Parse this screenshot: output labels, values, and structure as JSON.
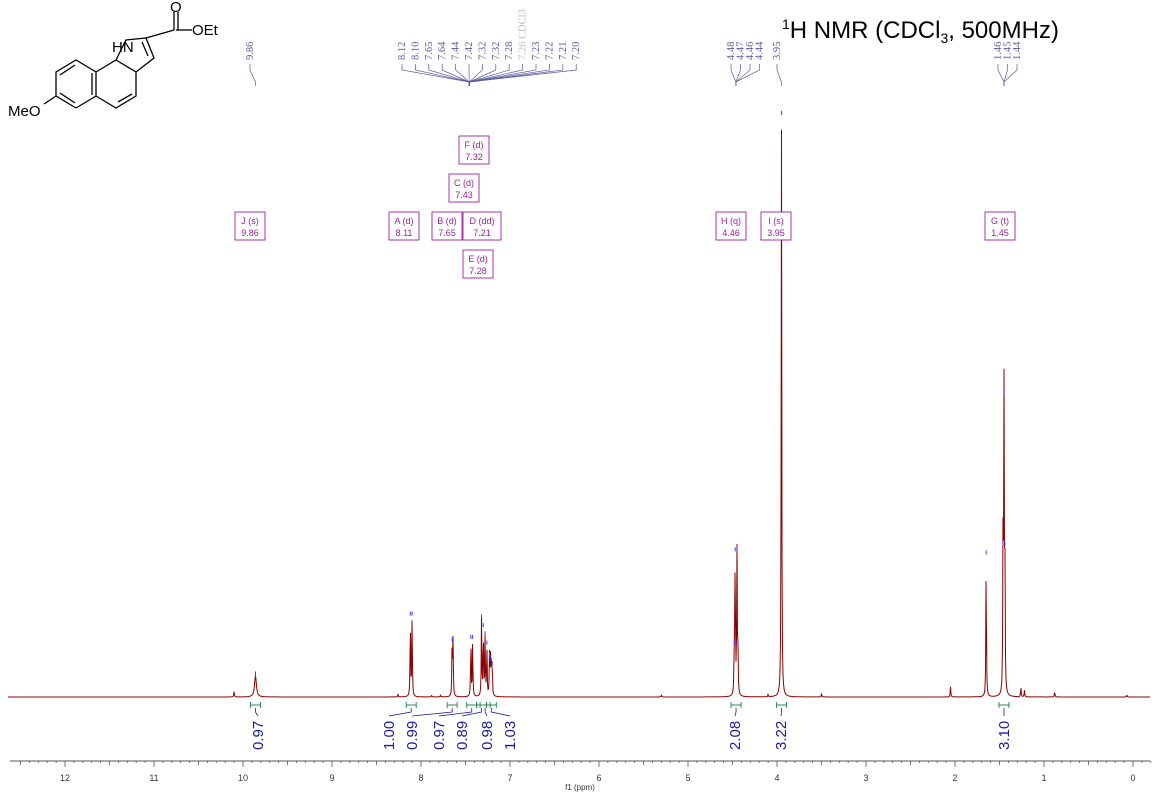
{
  "chart_data": {
    "type": "line",
    "title_main": "H NMR (CDCl",
    "title_sup": "1",
    "title_sub": "3",
    "title_tail": ", 500MHz)",
    "xlabel": "f1 (ppm)",
    "xlim": [
      12.8,
      -0.3
    ],
    "x_ticks": [
      "12",
      "11",
      "10",
      "9",
      "8",
      "7",
      "6",
      "5",
      "4",
      "3",
      "2",
      "1",
      "0"
    ],
    "structure": {
      "substituent_top": "OEt",
      "carbonyl_o": "O",
      "nh": "HN",
      "substituent_left": "MeO"
    },
    "peak_labels": [
      {
        "group": 1,
        "ppm": "9.86"
      },
      {
        "group": 2,
        "ppm": "8.12"
      },
      {
        "group": 2,
        "ppm": "8.10"
      },
      {
        "group": 2,
        "ppm": "7.65"
      },
      {
        "group": 2,
        "ppm": "7.64"
      },
      {
        "group": 2,
        "ppm": "7.44"
      },
      {
        "group": 2,
        "ppm": "7.42"
      },
      {
        "group": 2,
        "ppm": "7.32"
      },
      {
        "group": 2,
        "ppm": "7.32"
      },
      {
        "group": 2,
        "ppm": "7.28"
      },
      {
        "group": 2,
        "ppm": "7.26 CDCl3",
        "solvent": true
      },
      {
        "group": 2,
        "ppm": "7.23"
      },
      {
        "group": 2,
        "ppm": "7.22"
      },
      {
        "group": 2,
        "ppm": "7.21"
      },
      {
        "group": 2,
        "ppm": "7.20"
      },
      {
        "group": 3,
        "ppm": "4.48"
      },
      {
        "group": 3,
        "ppm": "4.47"
      },
      {
        "group": 3,
        "ppm": "4.46"
      },
      {
        "group": 3,
        "ppm": "4.44"
      },
      {
        "group": 4,
        "ppm": "3.95"
      },
      {
        "group": 5,
        "ppm": "1.46"
      },
      {
        "group": 5,
        "ppm": "1.45"
      },
      {
        "group": 5,
        "ppm": "1.44"
      }
    ],
    "multiplets": [
      {
        "label": "J (s)",
        "shift": "9.86",
        "ppm": 9.86
      },
      {
        "label": "A (d)",
        "shift": "8.11",
        "ppm": 8.11
      },
      {
        "label": "B (d)",
        "shift": "7.65",
        "ppm": 7.65
      },
      {
        "label": "D (dd)",
        "shift": "7.21",
        "ppm": 7.21
      },
      {
        "label": "C (d)",
        "shift": "7.43",
        "ppm": 7.43
      },
      {
        "label": "F (d)",
        "shift": "7.32",
        "ppm": 7.32
      },
      {
        "label": "E (d)",
        "shift": "7.28",
        "ppm": 7.28
      },
      {
        "label": "H (q)",
        "shift": "4.46",
        "ppm": 4.46
      },
      {
        "label": "I (s)",
        "shift": "3.95",
        "ppm": 3.95
      },
      {
        "label": "G (t)",
        "shift": "1.45",
        "ppm": 1.45
      }
    ],
    "integrals": [
      {
        "value": "0.97",
        "ppm": 9.86
      },
      {
        "value": "1.00",
        "ppm": 8.11
      },
      {
        "value": "0.99",
        "ppm": 7.65
      },
      {
        "value": "0.97",
        "ppm": 7.43
      },
      {
        "value": "0.89",
        "ppm": 7.32
      },
      {
        "value": "0.98",
        "ppm": 7.28
      },
      {
        "value": "1.03",
        "ppm": 7.21
      },
      {
        "value": "2.08",
        "ppm": 4.46
      },
      {
        "value": "3.22",
        "ppm": 3.95
      },
      {
        "value": "3.10",
        "ppm": 1.45
      }
    ],
    "peaks": [
      {
        "ppm": 10.1,
        "h": 0.01
      },
      {
        "ppm": 9.86,
        "h": 0.037,
        "w": 0.012
      },
      {
        "ppm": 8.26,
        "h": 0.005
      },
      {
        "ppm": 8.12,
        "h": 0.14
      },
      {
        "ppm": 8.1,
        "h": 0.14
      },
      {
        "ppm": 7.88,
        "h": 0.003
      },
      {
        "ppm": 7.78,
        "h": 0.003
      },
      {
        "ppm": 7.65,
        "h": 0.095
      },
      {
        "ppm": 7.64,
        "h": 0.095
      },
      {
        "ppm": 7.44,
        "h": 0.1
      },
      {
        "ppm": 7.42,
        "h": 0.1
      },
      {
        "ppm": 7.32,
        "h": 0.135
      },
      {
        "ppm": 7.3,
        "h": 0.12
      },
      {
        "ppm": 7.28,
        "h": 0.106
      },
      {
        "ppm": 7.26,
        "h": 0.09
      },
      {
        "ppm": 7.23,
        "h": 0.07
      },
      {
        "ppm": 7.22,
        "h": 0.065
      },
      {
        "ppm": 7.21,
        "h": 0.06
      },
      {
        "ppm": 7.2,
        "h": 0.055
      },
      {
        "ppm": 5.3,
        "h": 0.004
      },
      {
        "ppm": 4.48,
        "h": 0.09
      },
      {
        "ppm": 4.47,
        "h": 0.25
      },
      {
        "ppm": 4.45,
        "h": 0.25
      },
      {
        "ppm": 4.44,
        "h": 0.09
      },
      {
        "ppm": 4.1,
        "h": 0.004
      },
      {
        "ppm": 3.95,
        "h": 1.0
      },
      {
        "ppm": 3.5,
        "h": 0.006
      },
      {
        "ppm": 2.05,
        "h": 0.018
      },
      {
        "ppm": 1.65,
        "h": 0.245
      },
      {
        "ppm": 1.46,
        "h": 0.26
      },
      {
        "ppm": 1.45,
        "h": 0.52
      },
      {
        "ppm": 1.44,
        "h": 0.26
      },
      {
        "ppm": 1.26,
        "h": 0.018
      },
      {
        "ppm": 1.22,
        "h": 0.012
      },
      {
        "ppm": 0.88,
        "h": 0.01
      },
      {
        "ppm": 0.07,
        "h": 0.004
      }
    ],
    "colors": {
      "spectrum": "#8b0000",
      "peak_label": "#5a5aa0",
      "solvent_label": "#bbbbbb",
      "multiplet_box": "#a020a0",
      "integral": "#1a1aa0",
      "integral_bracket": "#2e8b57",
      "axis": "#555555"
    },
    "grid": false
  }
}
